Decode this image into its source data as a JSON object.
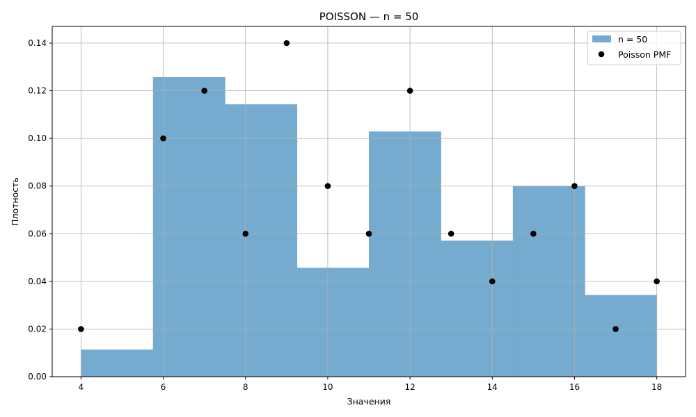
{
  "chart_data": {
    "type": "bar",
    "title": "POISSON — n = 50",
    "xlabel": "Значения",
    "ylabel": "Плотность",
    "xlim": [
      3.3,
      18.7
    ],
    "ylim": [
      0.0,
      0.147
    ],
    "xticks": [
      4,
      6,
      8,
      10,
      12,
      14,
      16,
      18
    ],
    "yticks": [
      0.0,
      0.02,
      0.04,
      0.06,
      0.08,
      0.1,
      0.12,
      0.14
    ],
    "xtick_labels": [
      "4",
      "6",
      "8",
      "10",
      "12",
      "14",
      "16",
      "18"
    ],
    "ytick_labels": [
      "0.00",
      "0.02",
      "0.04",
      "0.06",
      "0.08",
      "0.10",
      "0.12",
      "0.14"
    ],
    "grid": true,
    "legend_position": "top-right",
    "histogram": {
      "name": "n = 50",
      "color": "#75abcf",
      "bin_edges": [
        4.0,
        5.75,
        7.5,
        9.25,
        11.0,
        12.75,
        14.5,
        16.25,
        18.0
      ],
      "densities": [
        0.0114,
        0.1257,
        0.1143,
        0.0457,
        0.1029,
        0.0571,
        0.08,
        0.0343
      ]
    },
    "pmf_points": {
      "name": "Poisson PMF",
      "color": "#000000",
      "x": [
        4,
        6,
        7,
        8,
        9,
        10,
        11,
        12,
        13,
        14,
        15,
        16,
        17,
        18
      ],
      "y": [
        0.02,
        0.1,
        0.12,
        0.06,
        0.14,
        0.08,
        0.06,
        0.12,
        0.06,
        0.04,
        0.06,
        0.08,
        0.02,
        0.04
      ]
    }
  }
}
